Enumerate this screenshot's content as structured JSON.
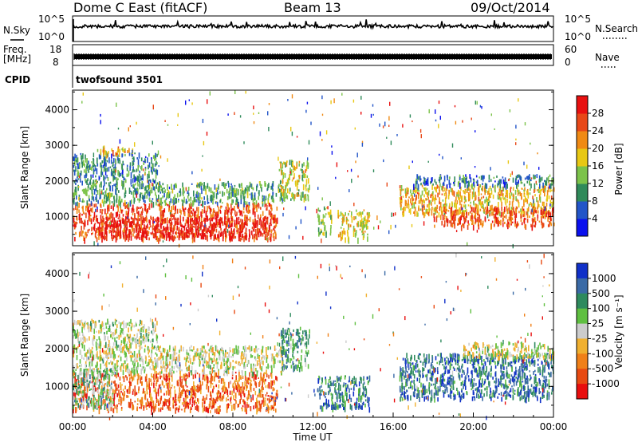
{
  "header": {
    "station": "Dome C East (fitACF)",
    "beam": "Beam 13",
    "date": "09/Oct/2014"
  },
  "top_panels": {
    "nsky_label": "N.Sky",
    "nsearch_label": "N.Search",
    "freq_label_1": "Freq.",
    "freq_label_2": "[MHz]",
    "nave_label": "Nave",
    "cpid_label": "CPID",
    "cpid_value": "twofsound 3501",
    "noise_ticks": {
      "exp_top": "10^5",
      "exp_bottom": "10^0"
    },
    "freq_ticks": [
      "18",
      "8"
    ],
    "nave_ticks": [
      "60",
      "0"
    ]
  },
  "chart_data": [
    {
      "type": "heatmap",
      "name": "Power",
      "xlabel": "",
      "ylabel": "Slant Range [km]",
      "xlim": [
        0,
        24
      ],
      "ylim": [
        180,
        4550
      ],
      "y_ticks": [
        "1000",
        "2000",
        "3000",
        "4000"
      ],
      "y_tick_values": [
        1000,
        2000,
        3000,
        4000
      ],
      "colorbar": {
        "label": "Power [dB]",
        "ticks": [
          "4",
          "8",
          "12",
          "16",
          "20",
          "24",
          "28"
        ],
        "colors": [
          "#0a10ee",
          "#2255c8",
          "#2f8a5a",
          "#7cc34a",
          "#e8c814",
          "#f08a14",
          "#e84818",
          "#e81010"
        ]
      },
      "regions": [
        {
          "t": [
            0.0,
            10.2
          ],
          "r": [
            400,
            1400
          ],
          "level": 0.82
        },
        {
          "t": [
            1.0,
            9.6
          ],
          "r": [
            450,
            1000
          ],
          "level": 0.95
        },
        {
          "t": [
            0.0,
            10.5
          ],
          "r": [
            1400,
            2000
          ],
          "level": 0.35
        },
        {
          "t": [
            0.0,
            4.2
          ],
          "r": [
            2000,
            2800
          ],
          "level": 0.28
        },
        {
          "t": [
            1.0,
            3.0
          ],
          "r": [
            2800,
            3000
          ],
          "level": 0.6
        },
        {
          "t": [
            10.3,
            11.8
          ],
          "r": [
            1500,
            2600
          ],
          "level": 0.5
        },
        {
          "t": [
            12.2,
            12.9
          ],
          "r": [
            500,
            1300
          ],
          "level": 0.45
        },
        {
          "t": [
            13.2,
            14.8
          ],
          "r": [
            400,
            1200
          ],
          "level": 0.55
        },
        {
          "t": [
            16.3,
            24.0
          ],
          "r": [
            1100,
            1900
          ],
          "level": 0.6
        },
        {
          "t": [
            18.0,
            24.0
          ],
          "r": [
            750,
            1300
          ],
          "level": 0.8
        },
        {
          "t": [
            17.0,
            24.0
          ],
          "r": [
            1900,
            2200
          ],
          "level": 0.25
        }
      ]
    },
    {
      "type": "heatmap",
      "name": "Velocity",
      "xlabel": "Time UT",
      "ylabel": "Slant Range [km]",
      "xlim": [
        0,
        24
      ],
      "ylim": [
        180,
        4550
      ],
      "x_ticks": [
        "00:00",
        "04:00",
        "08:00",
        "12:00",
        "16:00",
        "20:00",
        "00:00"
      ],
      "x_tick_values": [
        0,
        4,
        8,
        12,
        16,
        20,
        24
      ],
      "y_ticks": [
        "1000",
        "2000",
        "3000",
        "4000"
      ],
      "y_tick_values": [
        1000,
        2000,
        3000,
        4000
      ],
      "colorbar": {
        "label": "Velocity [m s⁻¹]",
        "ticks": [
          "1000",
          "500",
          "100",
          "25",
          "-25",
          "-100",
          "-500",
          "-1000"
        ],
        "colors": [
          "#1030c8",
          "#3a6aa6",
          "#2e8a5e",
          "#5fbf40",
          "#cccccc",
          "#f0b030",
          "#f08018",
          "#e84a12",
          "#e80e0e"
        ]
      },
      "regions": [
        {
          "t": [
            0.0,
            10.2
          ],
          "r": [
            400,
            1400
          ],
          "level": 0.78
        },
        {
          "t": [
            0.0,
            10.5
          ],
          "r": [
            1400,
            2100
          ],
          "level": 0.5
        },
        {
          "t": [
            0.0,
            4.2
          ],
          "r": [
            2100,
            2800
          ],
          "level": 0.48
        },
        {
          "t": [
            0.0,
            2.0
          ],
          "r": [
            500,
            1500
          ],
          "level": 0.38
        },
        {
          "t": [
            10.3,
            11.8
          ],
          "r": [
            1500,
            2600
          ],
          "level": 0.3
        },
        {
          "t": [
            12.2,
            14.8
          ],
          "r": [
            450,
            1300
          ],
          "level": 0.22
        },
        {
          "t": [
            16.3,
            24.0
          ],
          "r": [
            700,
            1900
          ],
          "level": 0.2
        },
        {
          "t": [
            19.5,
            24.0
          ],
          "r": [
            1800,
            2200
          ],
          "level": 0.5
        }
      ]
    }
  ]
}
